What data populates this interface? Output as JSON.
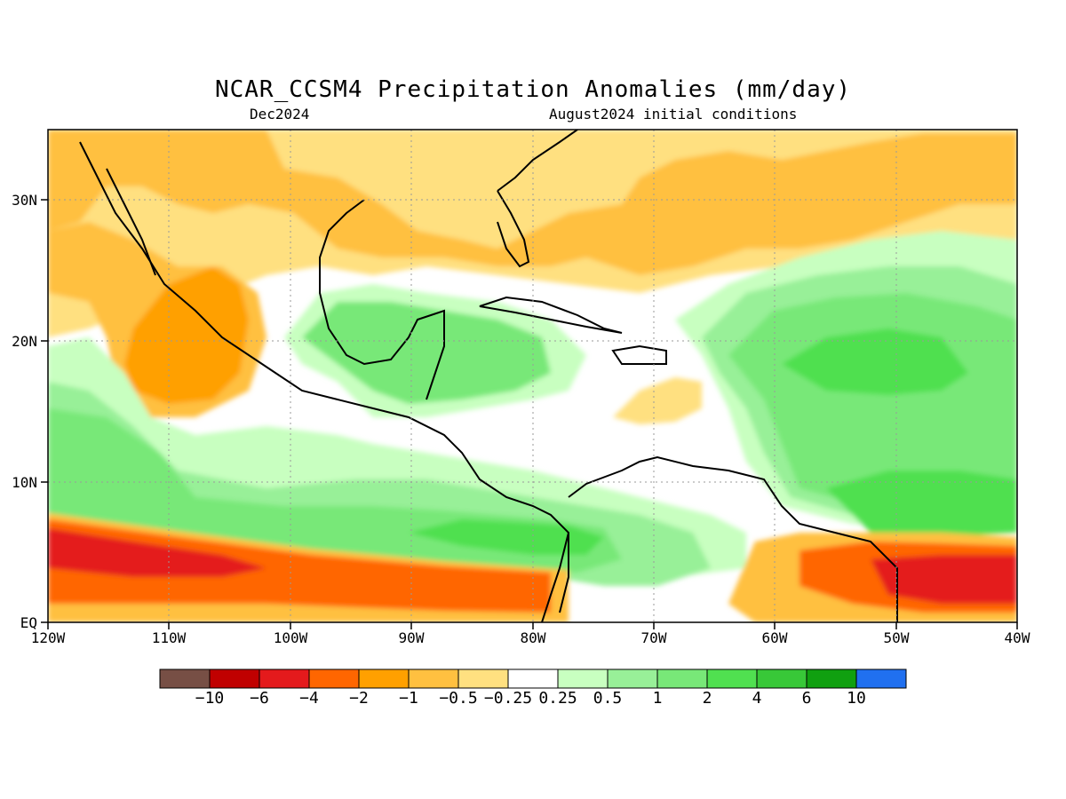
{
  "title": "NCAR_CCSM4 Precipitation Anomalies (mm/day)",
  "subtitle_left": "Dec2024",
  "subtitle_right": "August2024 initial conditions",
  "map": {
    "lon_range": [
      -120,
      -40
    ],
    "lat_range": [
      0,
      35
    ],
    "x_ticks": [
      "120W",
      "110W",
      "100W",
      "90W",
      "80W",
      "70W",
      "60W",
      "50W",
      "40W"
    ],
    "y_ticks": [
      "30N",
      "20N",
      "10N",
      "EQ"
    ],
    "grid": "dotted"
  },
  "colorbar": {
    "labels": [
      "−10",
      "−6",
      "−4",
      "−2",
      "−1",
      "−0.5",
      "−0.25",
      "0.25",
      "0.5",
      "1",
      "2",
      "4",
      "6",
      "10"
    ],
    "colors": [
      "#774f45",
      "#c00000",
      "#e41a1c",
      "#ff6600",
      "#ffa000",
      "#ffc040",
      "#ffe080",
      "#ffffff",
      "#c8ffc0",
      "#98f098",
      "#78e878",
      "#50e050",
      "#38c838",
      "#10a010",
      "#2070f0"
    ]
  }
}
